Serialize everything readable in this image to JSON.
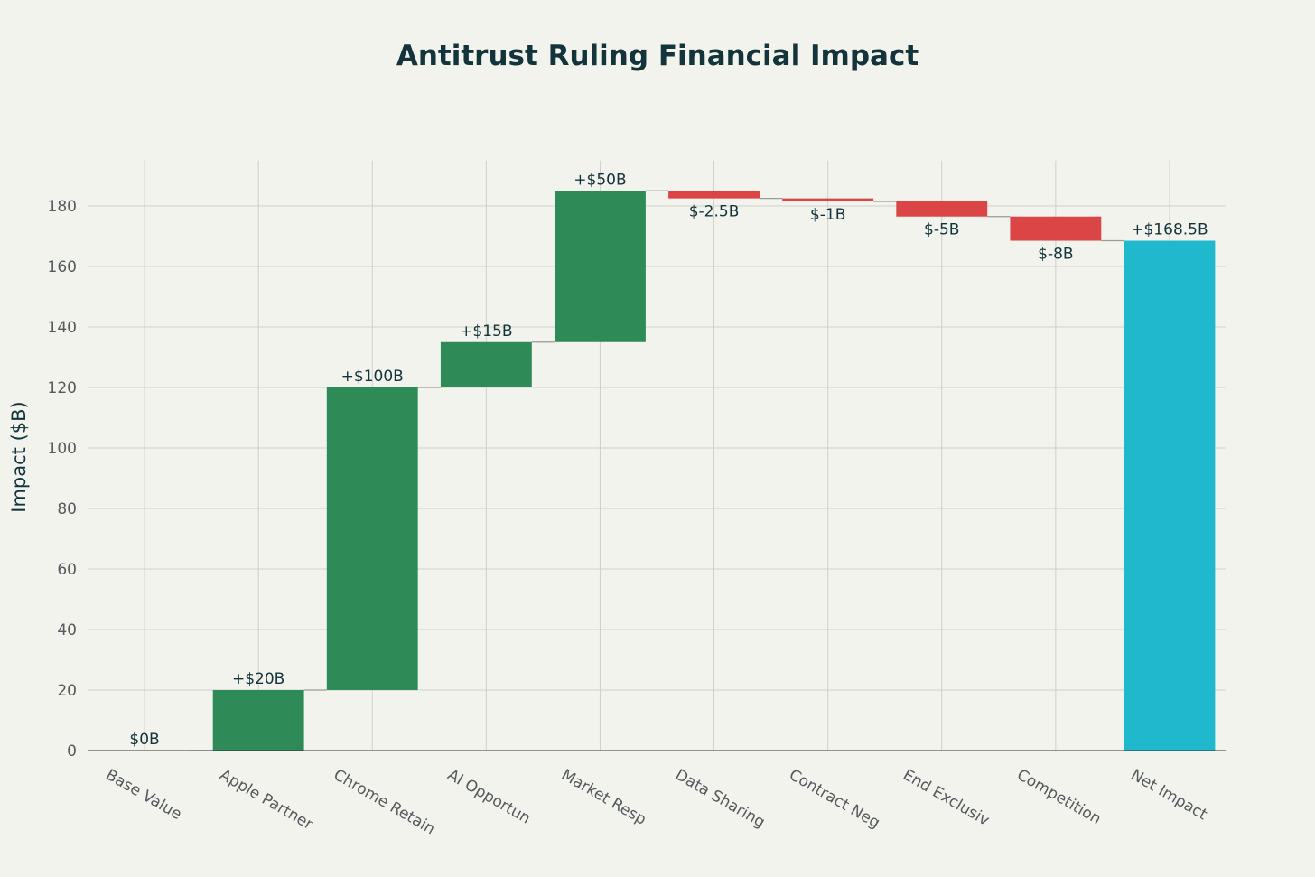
{
  "chart_data": {
    "type": "waterfall",
    "title": "Antitrust Ruling Financial Impact",
    "ylabel": "Impact ($B)",
    "xlabel": "",
    "ylim": [
      0,
      195
    ],
    "yticks": [
      0,
      20,
      40,
      60,
      80,
      100,
      120,
      140,
      160,
      180
    ],
    "grid": true,
    "steps": [
      {
        "category": "Base Value",
        "delta": 0,
        "kind": "relative",
        "label": "$0B"
      },
      {
        "category": "Apple Partner",
        "delta": 20,
        "kind": "relative",
        "label": "+$20B"
      },
      {
        "category": "Chrome Retain",
        "delta": 100,
        "kind": "relative",
        "label": "+$100B"
      },
      {
        "category": "AI Opportun",
        "delta": 15,
        "kind": "relative",
        "label": "+$15B"
      },
      {
        "category": "Market Resp",
        "delta": 50,
        "kind": "relative",
        "label": "+$50B"
      },
      {
        "category": "Data Sharing",
        "delta": -2.5,
        "kind": "relative",
        "label": "$-2.5B"
      },
      {
        "category": "Contract Neg",
        "delta": -1,
        "kind": "relative",
        "label": "$-1B"
      },
      {
        "category": "End Exclusiv",
        "delta": -5,
        "kind": "relative",
        "label": "$-5B"
      },
      {
        "category": "Competition",
        "delta": -8,
        "kind": "relative",
        "label": "$-8B"
      },
      {
        "category": "Net Impact",
        "delta": 168.5,
        "kind": "total",
        "label": "+$168.5B"
      }
    ],
    "colors": {
      "increase": "#2e8b57",
      "decrease": "#db4545",
      "total": "#1fb8cd"
    }
  }
}
